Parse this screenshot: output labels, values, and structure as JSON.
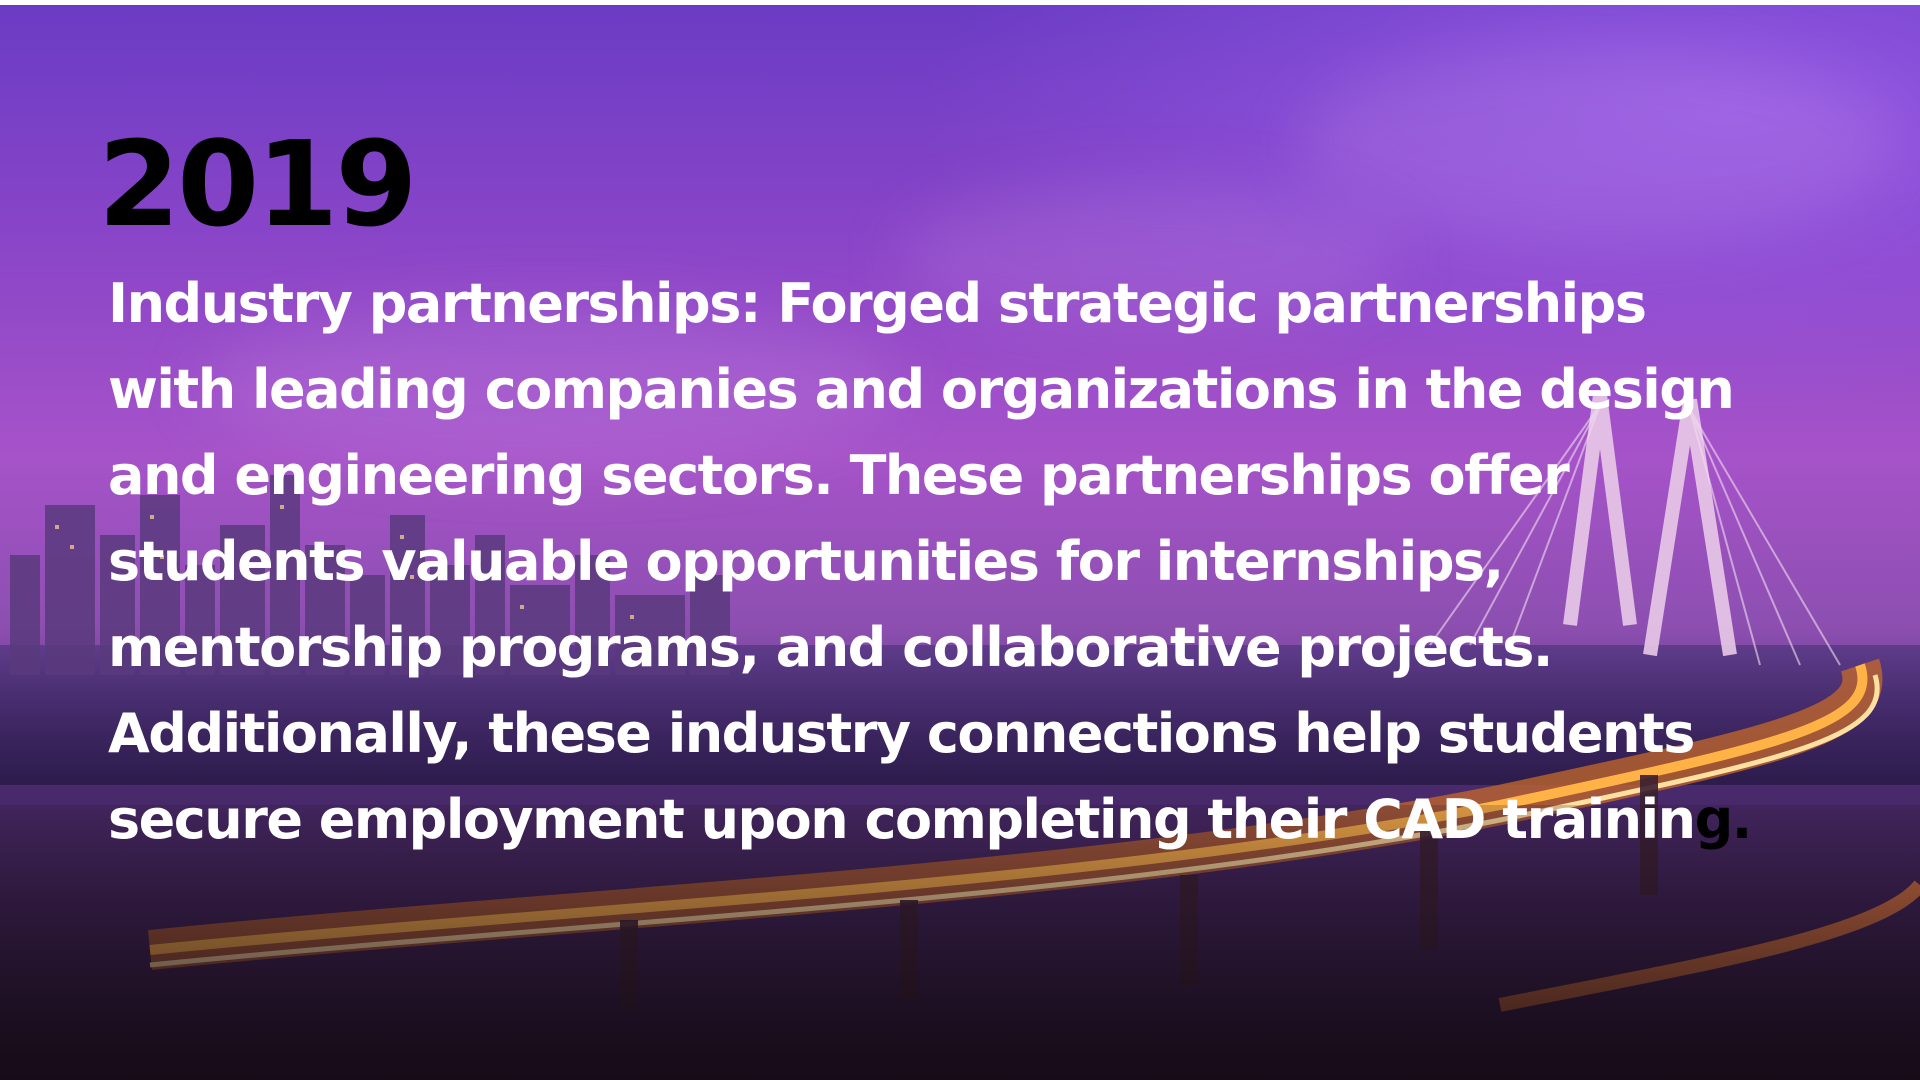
{
  "slide": {
    "year": "2019",
    "lines": [
      "Industry partnerships: Forged strategic partnerships",
      "with leading companies and organizations in the design",
      "and engineering sectors. These partnerships offer",
      "students valuable opportunities for internships,",
      "mentorship programs, and collaborative projects.",
      "Additionally, these industry connections help students",
      "secure employment upon completing their CAD trainin"
    ],
    "last_line_tail": "g.",
    "colors": {
      "year_text": "#000000",
      "body_text": "#ffffff",
      "sky": "#8a45c8",
      "bridge_lights": "#ffb347"
    }
  }
}
